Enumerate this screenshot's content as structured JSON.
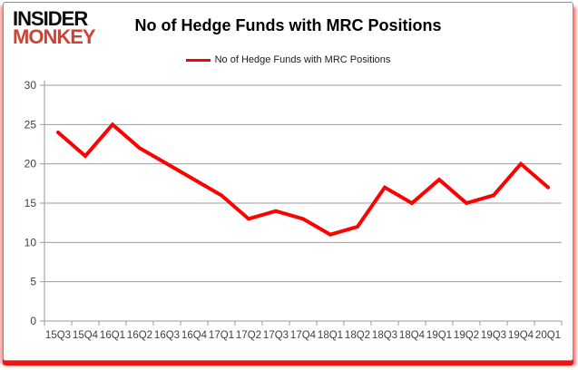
{
  "brand": {
    "line1": "INSIDER",
    "line2": "MONKEY"
  },
  "header": {
    "title": "No of Hedge Funds with MRC Positions"
  },
  "legend": {
    "label": "No of Hedge Funds with MRC Positions"
  },
  "colors": {
    "series": "#ff0000",
    "grid": "#9b9b9b",
    "axis_text": "#3f3f3f",
    "brand_red": "#cb4436",
    "border_red": "#ee1515"
  },
  "chart_data": {
    "type": "line",
    "title": "No of Hedge Funds with MRC Positions",
    "categories": [
      "15Q3",
      "15Q4",
      "16Q1",
      "16Q2",
      "16Q3",
      "16Q4",
      "17Q1",
      "17Q2",
      "17Q3",
      "17Q4",
      "18Q1",
      "18Q2",
      "18Q3",
      "18Q4",
      "19Q1",
      "19Q2",
      "19Q3",
      "19Q4",
      "20Q1"
    ],
    "series": [
      {
        "name": "No of Hedge Funds with MRC Positions",
        "values": [
          24,
          21,
          25,
          22,
          20,
          18,
          16,
          13,
          14,
          13,
          11,
          12,
          17,
          15,
          18,
          15,
          16,
          20,
          17
        ]
      }
    ],
    "xlabel": "",
    "ylabel": "",
    "ylim": [
      0,
      30
    ],
    "yticks": [
      0,
      5,
      10,
      15,
      20,
      25,
      30
    ],
    "grid": true,
    "legend_position": "top-center"
  }
}
